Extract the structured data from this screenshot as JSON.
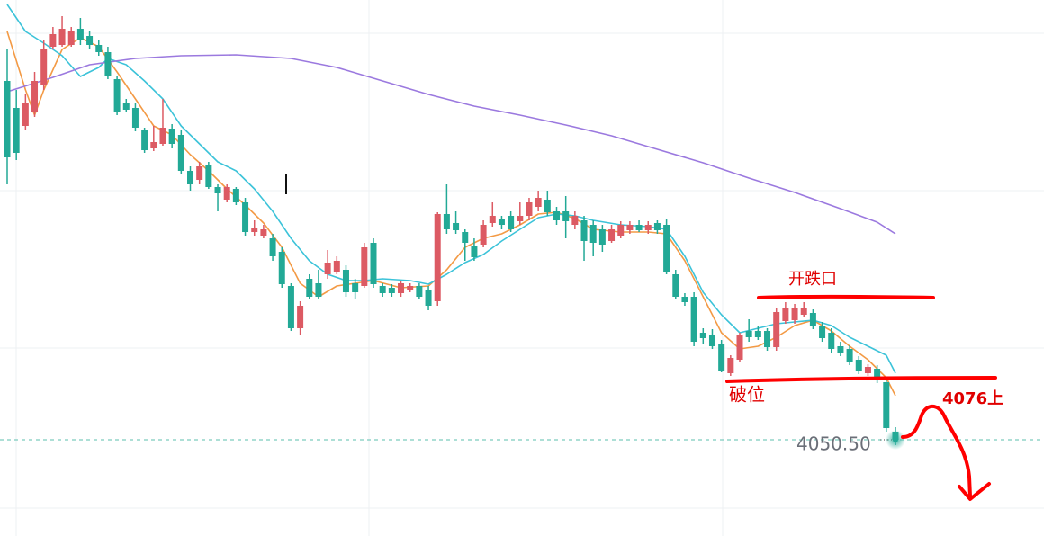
{
  "chart_data": {
    "type": "candlestick",
    "ylim": [
      4007.7,
      4246.1
    ],
    "up_color": "#dc5a63",
    "down_color": "#22a996",
    "open": [
      4210.1,
      4198.1,
      4190.1,
      4196.1,
      4208.1,
      4225.3,
      4226.1,
      4226.1,
      4233.3,
      4230.1,
      4226.1,
      4222.9,
      4210.9,
      4200.1,
      4198.1,
      4188.1,
      4180.1,
      4182.1,
      4188.9,
      4186.1,
      4170.1,
      4166.1,
      4172.9,
      4162.9,
      4157.3,
      4162.1,
      4156.1,
      4142.9,
      4141.3,
      4140.1,
      4134.1,
      4118.9,
      4100.1,
      4122.1,
      4120.1,
      4124.1,
      4125.3,
      4126.1,
      4120.1,
      4118.9,
      4138.1,
      4118.9,
      4118.1,
      4115.7,
      4117.3,
      4118.9,
      4117.3,
      4112.1,
      4150.9,
      4146.9,
      4142.9,
      4136.9,
      4137.3,
      4146.9,
      4148.5,
      4150.1,
      4147.7,
      4150.1,
      4154.1,
      4157.3,
      4152.1,
      4152.1,
      4146.1,
      4148.1,
      4146.1,
      4144.1,
      4138.9,
      4141.3,
      4143.7,
      4146.1,
      4143.7,
      4146.9,
      4146.1,
      4124.1,
      4114.1,
      4114.1,
      4098.1,
      4097.3,
      4093.3,
      4080.1,
      4086.1,
      4098.9,
      4098.9,
      4098.9,
      4091.7,
      4103.3,
      4103.7,
      4106.1,
      4106.9,
      4101.3,
      4098.1,
      4092.1,
      4090.9,
      4086.1,
      4080.1,
      4082.1,
      4076.1,
      4054.1
    ],
    "high": [
      4224.1,
      4206.1,
      4204.1,
      4214.1,
      4228.1,
      4234.1,
      4238.9,
      4234.1,
      4238.1,
      4232.1,
      4228.1,
      4225.3,
      4212.1,
      4202.1,
      4200.1,
      4189.3,
      4190.1,
      4202.1,
      4190.9,
      4188.1,
      4172.1,
      4174.1,
      4174.1,
      4164.1,
      4164.1,
      4162.9,
      4158.1,
      4148.1,
      4146.1,
      4142.1,
      4136.1,
      4120.1,
      4112.1,
      4124.1,
      4126.1,
      4134.9,
      4132.1,
      4128.1,
      4122.1,
      4138.1,
      4140.1,
      4120.1,
      4119.7,
      4121.3,
      4120.1,
      4120.1,
      4118.9,
      4151.7,
      4164.1,
      4152.1,
      4144.1,
      4140.1,
      4148.1,
      4156.1,
      4150.1,
      4152.1,
      4156.1,
      4158.1,
      4161.3,
      4161.3,
      4154.1,
      4158.9,
      4152.1,
      4150.1,
      4148.1,
      4146.1,
      4146.1,
      4147.7,
      4147.7,
      4148.1,
      4147.7,
      4148.1,
      4148.9,
      4126.1,
      4115.7,
      4116.1,
      4100.1,
      4099.7,
      4094.9,
      4088.1,
      4098.1,
      4104.1,
      4101.3,
      4100.1,
      4108.9,
      4111.7,
      4110.9,
      4111.7,
      4108.5,
      4102.9,
      4100.1,
      4094.1,
      4092.5,
      4087.7,
      4084.1,
      4083.7,
      4078.1,
      4056.1
    ],
    "low": [
      4164.1,
      4174.9,
      4188.1,
      4194.1,
      4206.1,
      4224.1,
      4225.3,
      4225.3,
      4226.1,
      4224.1,
      4221.3,
      4210.9,
      4194.9,
      4196.1,
      4187.7,
      4178.1,
      4178.9,
      4181.3,
      4180.1,
      4168.9,
      4161.3,
      4164.1,
      4162.1,
      4152.1,
      4156.1,
      4154.9,
      4141.3,
      4141.3,
      4140.1,
      4130.1,
      4118.1,
      4098.9,
      4097.3,
      4112.9,
      4112.9,
      4122.1,
      4124.1,
      4114.1,
      4112.9,
      4118.1,
      4118.1,
      4114.1,
      4114.1,
      4114.1,
      4116.1,
      4112.9,
      4108.1,
      4110.1,
      4142.1,
      4142.1,
      4130.1,
      4130.1,
      4136.1,
      4145.3,
      4144.1,
      4142.9,
      4146.1,
      4148.1,
      4152.1,
      4150.1,
      4146.1,
      4140.1,
      4144.1,
      4130.1,
      4132.1,
      4134.1,
      4138.1,
      4140.1,
      4142.1,
      4142.9,
      4142.1,
      4142.1,
      4124.1,
      4112.9,
      4110.1,
      4092.1,
      4093.3,
      4090.9,
      4080.5,
      4078.9,
      4085.3,
      4094.1,
      4094.9,
      4090.1,
      4090.1,
      4102.1,
      4102.1,
      4105.3,
      4099.7,
      4094.1,
      4089.3,
      4087.7,
      4083.7,
      4079.7,
      4078.9,
      4075.7,
      4054.1,
      4048.1
    ],
    "close": [
      4176.1,
      4178.1,
      4200.1,
      4210.1,
      4224.1,
      4230.9,
      4233.3,
      4232.1,
      4228.1,
      4226.1,
      4222.9,
      4212.1,
      4196.1,
      4197.3,
      4189.3,
      4179.3,
      4182.9,
      4189.3,
      4182.1,
      4170.1,
      4164.1,
      4172.1,
      4162.9,
      4160.1,
      4162.9,
      4156.1,
      4142.9,
      4144.9,
      4144.1,
      4132.1,
      4119.7,
      4100.1,
      4110.1,
      4114.1,
      4114.1,
      4129.3,
      4130.1,
      4116.1,
      4116.1,
      4136.1,
      4119.7,
      4115.7,
      4115.7,
      4120.1,
      4118.9,
      4114.1,
      4110.1,
      4150.9,
      4144.1,
      4143.7,
      4138.1,
      4131.7,
      4146.1,
      4150.1,
      4146.1,
      4144.1,
      4150.1,
      4156.1,
      4158.1,
      4151.7,
      4148.1,
      4147.7,
      4150.1,
      4138.9,
      4138.1,
      4137.3,
      4144.1,
      4146.1,
      4146.1,
      4143.7,
      4146.1,
      4143.7,
      4124.9,
      4114.1,
      4111.7,
      4094.1,
      4095.7,
      4092.1,
      4081.3,
      4086.9,
      4097.3,
      4096.1,
      4096.1,
      4091.7,
      4107.3,
      4108.9,
      4108.9,
      4109.3,
      4101.3,
      4095.7,
      4090.9,
      4089.3,
      4085.3,
      4081.3,
      4082.9,
      4077.3,
      4055.7,
      4050.5
    ],
    "series": [
      {
        "color": "#f39a45",
        "x": [
          0,
          2,
          3,
          4,
          6,
          8,
          10,
          12,
          14,
          16,
          18,
          20,
          22,
          24,
          26,
          28,
          30,
          32,
          34,
          36,
          38,
          40,
          43,
          46,
          48,
          50,
          52,
          54,
          56,
          58,
          60,
          62,
          64,
          67,
          70,
          72,
          74,
          76,
          78,
          80,
          82,
          84,
          86,
          88,
          90,
          92,
          94,
          96,
          97
        ],
        "values": [
          4232.1,
          4206.1,
          4194.9,
          4206.1,
          4224.1,
          4229.3,
          4225.3,
          4214.1,
          4202.1,
          4190.1,
          4186.1,
          4177.3,
          4170.1,
          4162.1,
          4154.9,
          4146.9,
          4136.1,
          4120.1,
          4114.1,
          4118.9,
          4120.1,
          4121.3,
          4118.1,
          4118.9,
          4126.1,
          4136.1,
          4140.1,
          4142.1,
          4146.1,
          4150.9,
          4151.7,
          4148.9,
          4144.1,
          4142.9,
          4142.9,
          4142.1,
          4130.1,
          4114.1,
          4098.1,
          4090.9,
          4092.1,
          4096.1,
          4101.3,
          4103.7,
          4098.9,
          4092.1,
          4086.1,
          4078.1,
          4070.1
        ]
      },
      {
        "color": "#3cc3d9",
        "x": [
          0,
          2,
          4,
          6,
          8,
          10,
          11,
          13,
          15,
          17,
          19,
          21,
          23,
          25,
          27,
          29,
          31,
          33,
          35,
          37,
          39,
          41,
          44,
          46,
          48,
          50,
          52,
          54,
          56,
          58,
          60,
          62,
          64,
          67,
          70,
          72,
          74,
          76,
          78,
          80,
          82,
          84,
          86,
          88,
          90,
          92,
          94,
          96,
          97
        ],
        "values": [
          4244.1,
          4232.1,
          4226.9,
          4221.3,
          4212.1,
          4216.1,
          4220.1,
          4217.3,
          4210.1,
          4202.1,
          4190.1,
          4182.1,
          4174.1,
          4170.1,
          4162.1,
          4152.1,
          4140.1,
          4130.1,
          4124.1,
          4121.3,
          4121.3,
          4122.1,
          4121.3,
          4119.7,
          4124.1,
          4129.3,
          4132.9,
          4138.9,
          4144.1,
          4149.3,
          4150.9,
          4150.1,
          4148.1,
          4146.1,
          4145.3,
          4144.1,
          4132.1,
          4116.1,
          4106.1,
          4098.1,
          4100.1,
          4102.1,
          4102.9,
          4103.7,
          4101.3,
          4096.1,
          4092.1,
          4088.1,
          4080.1
        ]
      },
      {
        "color": "#9b79df",
        "x": [
          0,
          5,
          9,
          14,
          19,
          25,
          31,
          36,
          41,
          46,
          51,
          56,
          61,
          66,
          71,
          76,
          81,
          86,
          91,
          95,
          97
        ],
        "values": [
          4205.3,
          4211.7,
          4217.3,
          4220.1,
          4221.3,
          4221.7,
          4220.1,
          4216.1,
          4210.1,
          4204.1,
          4198.9,
          4194.9,
          4190.5,
          4185.7,
          4179.7,
          4173.7,
          4166.9,
          4160.5,
          4153.3,
          4147.3,
          4142.1
        ]
      }
    ],
    "current_price": 4050.5,
    "current_price_label": "4050.50",
    "annotations": [
      "开跌口",
      "破位",
      "4076上"
    ]
  }
}
